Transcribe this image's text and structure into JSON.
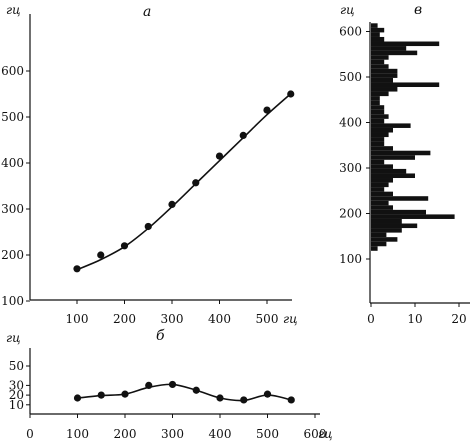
{
  "chart_data": [
    {
      "id": "a",
      "type": "scatter",
      "panel_label": "а",
      "y_unit": "гц",
      "x_unit": "гц",
      "xlim": [
        0,
        570
      ],
      "ylim": [
        0,
        620
      ],
      "x_ticks": [
        100,
        200,
        300,
        400,
        500
      ],
      "y_ticks": [
        100,
        200,
        300,
        400,
        500,
        600
      ],
      "points": [
        {
          "x": 100,
          "y": 170
        },
        {
          "x": 150,
          "y": 200
        },
        {
          "x": 200,
          "y": 220
        },
        {
          "x": 250,
          "y": 262
        },
        {
          "x": 300,
          "y": 310
        },
        {
          "x": 350,
          "y": 357
        },
        {
          "x": 400,
          "y": 415
        },
        {
          "x": 450,
          "y": 460
        },
        {
          "x": 500,
          "y": 515
        },
        {
          "x": 550,
          "y": 550
        }
      ],
      "fit_line": [
        {
          "x": 100,
          "y": 168
        },
        {
          "x": 150,
          "y": 190
        },
        {
          "x": 200,
          "y": 218
        },
        {
          "x": 250,
          "y": 258
        },
        {
          "x": 300,
          "y": 305
        },
        {
          "x": 350,
          "y": 355
        },
        {
          "x": 400,
          "y": 405
        },
        {
          "x": 450,
          "y": 455
        },
        {
          "x": 500,
          "y": 505
        },
        {
          "x": 555,
          "y": 555
        }
      ]
    },
    {
      "id": "b",
      "type": "line",
      "panel_label": "б",
      "y_unit": "гц",
      "x_unit": "гц",
      "xlim": [
        0,
        620
      ],
      "ylim": [
        0,
        55
      ],
      "x_ticks": [
        0,
        100,
        200,
        300,
        400,
        500,
        600
      ],
      "y_ticks": [
        10,
        20,
        30,
        50
      ],
      "points": [
        {
          "x": 100,
          "y": 17
        },
        {
          "x": 150,
          "y": 20
        },
        {
          "x": 200,
          "y": 21
        },
        {
          "x": 250,
          "y": 30
        },
        {
          "x": 300,
          "y": 31
        },
        {
          "x": 350,
          "y": 25
        },
        {
          "x": 400,
          "y": 17
        },
        {
          "x": 450,
          "y": 15
        },
        {
          "x": 500,
          "y": 21
        },
        {
          "x": 550,
          "y": 15
        }
      ],
      "curve": [
        {
          "x": 100,
          "y": 17
        },
        {
          "x": 150,
          "y": 19.5
        },
        {
          "x": 200,
          "y": 21
        },
        {
          "x": 250,
          "y": 28
        },
        {
          "x": 300,
          "y": 31
        },
        {
          "x": 350,
          "y": 25
        },
        {
          "x": 400,
          "y": 17
        },
        {
          "x": 450,
          "y": 14.5
        },
        {
          "x": 500,
          "y": 20
        },
        {
          "x": 550,
          "y": 15
        }
      ]
    },
    {
      "id": "v",
      "type": "bar",
      "orientation": "horizontal",
      "panel_label": "в",
      "y_unit": "гц",
      "xlim": [
        0,
        22
      ],
      "ylim": [
        100,
        620
      ],
      "x_ticks": [
        0,
        10,
        20
      ],
      "y_ticks": [
        100,
        200,
        300,
        400,
        500,
        600
      ],
      "bin_height": 10,
      "bars": [
        {
          "y": 123,
          "value": 1.5
        },
        {
          "y": 133,
          "value": 3.5
        },
        {
          "y": 143,
          "value": 6
        },
        {
          "y": 153,
          "value": 3.5
        },
        {
          "y": 163,
          "value": 7
        },
        {
          "y": 173,
          "value": 10.5
        },
        {
          "y": 183,
          "value": 7
        },
        {
          "y": 193,
          "value": 19
        },
        {
          "y": 203,
          "value": 12.5
        },
        {
          "y": 213,
          "value": 5
        },
        {
          "y": 223,
          "value": 4
        },
        {
          "y": 233,
          "value": 13
        },
        {
          "y": 243,
          "value": 5
        },
        {
          "y": 253,
          "value": 3
        },
        {
          "y": 263,
          "value": 4
        },
        {
          "y": 273,
          "value": 5
        },
        {
          "y": 283,
          "value": 10
        },
        {
          "y": 293,
          "value": 8
        },
        {
          "y": 303,
          "value": 5
        },
        {
          "y": 313,
          "value": 3
        },
        {
          "y": 323,
          "value": 10
        },
        {
          "y": 333,
          "value": 13.5
        },
        {
          "y": 343,
          "value": 5
        },
        {
          "y": 353,
          "value": 3
        },
        {
          "y": 363,
          "value": 3
        },
        {
          "y": 373,
          "value": 4
        },
        {
          "y": 383,
          "value": 5
        },
        {
          "y": 393,
          "value": 9
        },
        {
          "y": 403,
          "value": 3
        },
        {
          "y": 413,
          "value": 4
        },
        {
          "y": 423,
          "value": 3
        },
        {
          "y": 433,
          "value": 3
        },
        {
          "y": 443,
          "value": 2
        },
        {
          "y": 453,
          "value": 2
        },
        {
          "y": 463,
          "value": 4
        },
        {
          "y": 473,
          "value": 6
        },
        {
          "y": 483,
          "value": 15.5
        },
        {
          "y": 493,
          "value": 5
        },
        {
          "y": 503,
          "value": 6
        },
        {
          "y": 513,
          "value": 6
        },
        {
          "y": 523,
          "value": 4
        },
        {
          "y": 533,
          "value": 3
        },
        {
          "y": 543,
          "value": 4
        },
        {
          "y": 553,
          "value": 10.5
        },
        {
          "y": 563,
          "value": 8
        },
        {
          "y": 573,
          "value": 15.5
        },
        {
          "y": 583,
          "value": 3
        },
        {
          "y": 593,
          "value": 2
        },
        {
          "y": 603,
          "value": 3
        },
        {
          "y": 613,
          "value": 1.5
        }
      ]
    }
  ]
}
